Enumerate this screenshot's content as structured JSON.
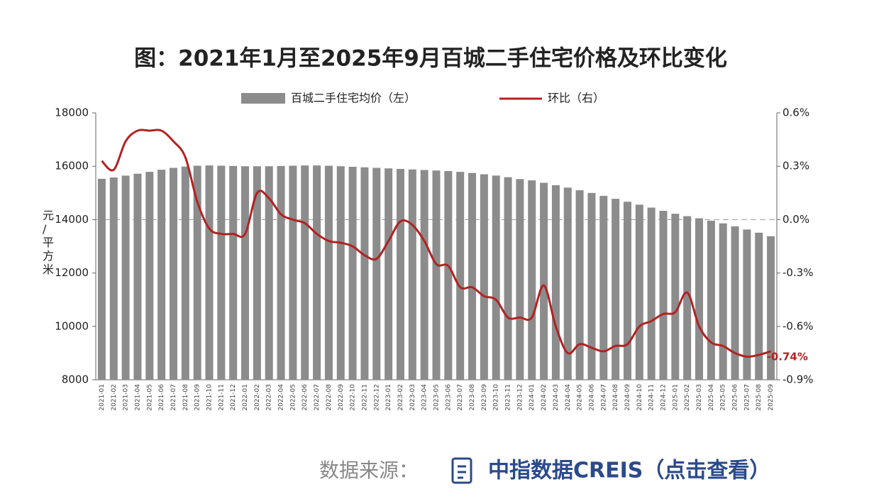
{
  "chart_data": {
    "type": "bar-line",
    "title": "图：2021年1月至2025年9月百城二手住宅价格及环比变化",
    "y_label": "元/平方米",
    "categories": [
      "2021-01",
      "2021-02",
      "2021-03",
      "2021-04",
      "2021-05",
      "2021-06",
      "2021-07",
      "2021-08",
      "2021-09",
      "2021-10",
      "2021-11",
      "2021-12",
      "2022-01",
      "2022-02",
      "2022-03",
      "2022-04",
      "2022-05",
      "2022-06",
      "2022-07",
      "2022-08",
      "2022-09",
      "2022-10",
      "2022-11",
      "2022-12",
      "2023-01",
      "2023-02",
      "2023-03",
      "2023-04",
      "2023-05",
      "2023-06",
      "2023-07",
      "2023-08",
      "2023-09",
      "2023-10",
      "2023-11",
      "2023-12",
      "2024-01",
      "2024-02",
      "2024-03",
      "2024-04",
      "2024-05",
      "2024-06",
      "2024-07",
      "2024-08",
      "2024-09",
      "2024-10",
      "2024-11",
      "2024-12",
      "2025-01",
      "2025-02",
      "2025-03",
      "2025-04",
      "2025-05",
      "2025-06",
      "2025-07",
      "2025-08",
      "2025-09"
    ],
    "series": [
      {
        "name": "百城二手住宅均价（左）",
        "color": "#8c8c8c",
        "values": [
          15530,
          15580,
          15650,
          15720,
          15790,
          15870,
          15940,
          15990,
          16020,
          16030,
          16020,
          16010,
          16000,
          16000,
          16000,
          16010,
          16020,
          16030,
          16030,
          16020,
          16000,
          15980,
          15960,
          15940,
          15920,
          15900,
          15880,
          15860,
          15840,
          15820,
          15790,
          15750,
          15700,
          15650,
          15590,
          15520,
          15470,
          15380,
          15290,
          15200,
          15100,
          15000,
          14890,
          14780,
          14670,
          14560,
          14450,
          14330,
          14220,
          14130,
          14050,
          13960,
          13860,
          13750,
          13630,
          13510,
          13380
        ]
      },
      {
        "name": "环比（右）",
        "color": "#b22222",
        "axis": "y2",
        "values": [
          0.33,
          0.28,
          0.44,
          0.5,
          0.5,
          0.5,
          0.44,
          0.35,
          0.1,
          -0.05,
          -0.08,
          -0.08,
          -0.08,
          0.15,
          0.12,
          0.03,
          0.0,
          -0.02,
          -0.08,
          -0.12,
          -0.13,
          -0.15,
          -0.2,
          -0.22,
          -0.12,
          -0.01,
          -0.03,
          -0.12,
          -0.25,
          -0.26,
          -0.38,
          -0.38,
          -0.43,
          -0.45,
          -0.55,
          -0.55,
          -0.55,
          -0.37,
          -0.6,
          -0.75,
          -0.7,
          -0.72,
          -0.74,
          -0.71,
          -0.7,
          -0.6,
          -0.57,
          -0.53,
          -0.52,
          -0.41,
          -0.6,
          -0.69,
          -0.71,
          -0.75,
          -0.77,
          -0.76,
          -0.74
        ],
        "end_label": "-0.74%"
      }
    ],
    "ylim": [
      8000,
      18000
    ],
    "yticks": [
      8000,
      10000,
      12000,
      14000,
      16000,
      18000
    ],
    "y2lim": [
      -0.9,
      0.6
    ],
    "y2ticks": [
      {
        "value": -0.9,
        "label": "-0.9%"
      },
      {
        "value": -0.6,
        "label": "-0.6%"
      },
      {
        "value": -0.3,
        "label": "-0.3%"
      },
      {
        "value": 0.0,
        "label": "0.0%"
      },
      {
        "value": 0.3,
        "label": "0.3%"
      },
      {
        "value": 0.6,
        "label": "0.6%"
      }
    ],
    "zero_line": true,
    "legend": "top"
  },
  "footer": {
    "source_label": "数据来源：",
    "link": "中指数据CREIS（点击查看）"
  }
}
